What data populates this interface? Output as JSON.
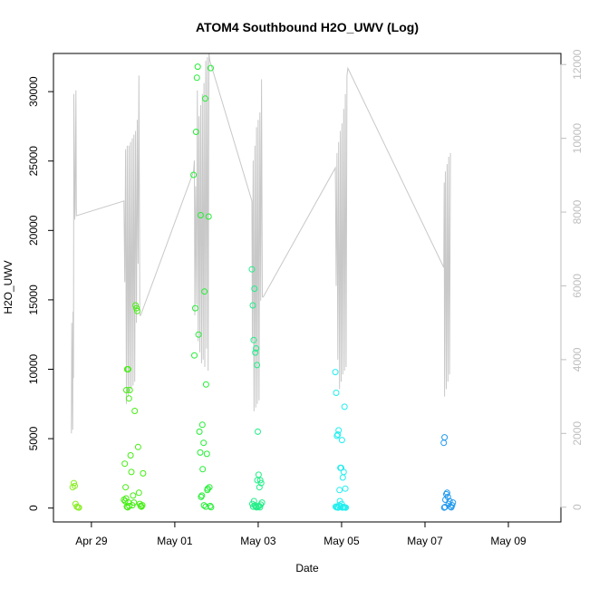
{
  "chart_data": {
    "type": "scatter",
    "title": "ATOM4 Southbound H2O_UWV (Log)",
    "xlabel": "Date",
    "ylabel": "H2O_UWV",
    "x_ticks": [
      "Apr 29",
      "May 01",
      "May 03",
      "May 05",
      "May 07",
      "May 09"
    ],
    "x_tick_days": [
      1,
      3,
      5,
      7,
      9,
      11
    ],
    "xlim_days": [
      0.09,
      12.26
    ],
    "ylim": [
      -1000,
      32750
    ],
    "y_ticks": [
      0,
      5000,
      10000,
      15000,
      20000,
      25000,
      30000
    ],
    "y2lim": [
      -400,
      12300
    ],
    "y2_ticks": [
      0,
      2000,
      4000,
      6000,
      8000,
      10000,
      12000
    ],
    "axis_color": "#000000",
    "secondary_color": "#c8c8c8",
    "secondary_tick_color": "#bebebe",
    "point_size": "open circles",
    "series": [
      {
        "color": "#88ee22",
        "points": [
          [
            0.55,
            1500
          ],
          [
            0.58,
            1800
          ],
          [
            0.6,
            1600
          ],
          [
            0.62,
            300
          ],
          [
            0.65,
            100
          ],
          [
            0.68,
            50
          ],
          [
            0.7,
            30
          ]
        ]
      },
      {
        "color": "#44ee11",
        "points": [
          [
            1.78,
            600
          ],
          [
            1.8,
            3200
          ],
          [
            1.82,
            1500
          ],
          [
            1.84,
            8500
          ],
          [
            1.86,
            10000
          ],
          [
            1.88,
            10000
          ],
          [
            1.9,
            7900
          ],
          [
            1.92,
            8500
          ],
          [
            1.94,
            3800
          ],
          [
            1.96,
            2600
          ],
          [
            1.98,
            200
          ],
          [
            2.0,
            900
          ],
          [
            2.02,
            400
          ],
          [
            2.04,
            7000
          ],
          [
            2.06,
            14600
          ],
          [
            2.08,
            14400
          ],
          [
            2.1,
            14200
          ],
          [
            2.12,
            4400
          ],
          [
            2.14,
            1100
          ],
          [
            2.16,
            300
          ],
          [
            2.18,
            150
          ],
          [
            2.2,
            100
          ],
          [
            2.22,
            200
          ],
          [
            2.24,
            2500
          ],
          [
            1.81,
            500
          ],
          [
            1.83,
            700
          ],
          [
            1.85,
            100
          ],
          [
            1.87,
            50
          ],
          [
            1.89,
            400
          ],
          [
            1.91,
            150
          ]
        ]
      },
      {
        "color": "#22ee33",
        "points": [
          [
            3.45,
            24000
          ],
          [
            3.47,
            11000
          ],
          [
            3.49,
            14400
          ],
          [
            3.51,
            27100
          ],
          [
            3.53,
            31000
          ],
          [
            3.55,
            31800
          ],
          [
            3.57,
            12500
          ],
          [
            3.59,
            5500
          ],
          [
            3.61,
            4000
          ],
          [
            3.63,
            800
          ],
          [
            3.65,
            900
          ],
          [
            3.67,
            2800
          ],
          [
            3.69,
            4700
          ],
          [
            3.71,
            15600
          ],
          [
            3.73,
            29500
          ],
          [
            3.75,
            8900
          ],
          [
            3.77,
            3900
          ],
          [
            3.79,
            1400
          ],
          [
            3.81,
            21000
          ],
          [
            3.83,
            1500
          ],
          [
            3.85,
            150
          ],
          [
            3.87,
            60
          ],
          [
            3.62,
            21100
          ],
          [
            3.66,
            6000
          ],
          [
            3.7,
            200
          ],
          [
            3.74,
            100
          ],
          [
            3.78,
            1300
          ],
          [
            3.86,
            31700
          ]
        ]
      },
      {
        "color": "#22ee88",
        "points": [
          [
            4.85,
            17200
          ],
          [
            4.87,
            14600
          ],
          [
            4.89,
            12100
          ],
          [
            4.91,
            15800
          ],
          [
            4.93,
            11200
          ],
          [
            4.95,
            11500
          ],
          [
            4.97,
            10300
          ],
          [
            4.99,
            5500
          ],
          [
            5.01,
            2400
          ],
          [
            5.03,
            1500
          ],
          [
            5.05,
            2000
          ],
          [
            5.07,
            1800
          ],
          [
            5.09,
            400
          ],
          [
            4.86,
            300
          ],
          [
            4.88,
            100
          ],
          [
            4.9,
            500
          ],
          [
            4.92,
            200
          ],
          [
            4.94,
            100
          ],
          [
            4.96,
            50
          ],
          [
            4.98,
            2000
          ],
          [
            5.0,
            100
          ],
          [
            5.02,
            150
          ],
          [
            5.04,
            50
          ],
          [
            5.06,
            250
          ]
        ]
      },
      {
        "color": "#22eeee",
        "points": [
          [
            6.85,
            9800
          ],
          [
            6.87,
            8300
          ],
          [
            6.89,
            5200
          ],
          [
            6.91,
            5300
          ],
          [
            6.93,
            5600
          ],
          [
            6.95,
            1300
          ],
          [
            6.97,
            2900
          ],
          [
            6.99,
            2900
          ],
          [
            7.01,
            4900
          ],
          [
            7.03,
            2200
          ],
          [
            7.05,
            2600
          ],
          [
            7.07,
            7300
          ],
          [
            7.09,
            1400
          ],
          [
            6.86,
            100
          ],
          [
            6.88,
            50
          ],
          [
            6.9,
            80
          ],
          [
            6.92,
            30
          ],
          [
            6.94,
            200
          ],
          [
            6.96,
            500
          ],
          [
            6.98,
            100
          ],
          [
            7.0,
            300
          ],
          [
            7.02,
            40
          ],
          [
            7.04,
            80
          ],
          [
            7.06,
            50
          ],
          [
            7.08,
            60
          ],
          [
            7.1,
            30
          ]
        ]
      },
      {
        "color": "#2299ee",
        "points": [
          [
            9.45,
            4700
          ],
          [
            9.47,
            5100
          ],
          [
            9.49,
            600
          ],
          [
            9.51,
            1000
          ],
          [
            9.53,
            1100
          ],
          [
            9.55,
            800
          ],
          [
            9.57,
            300
          ],
          [
            9.59,
            500
          ],
          [
            9.61,
            100
          ],
          [
            9.63,
            50
          ],
          [
            9.65,
            200
          ],
          [
            9.67,
            400
          ],
          [
            9.46,
            30
          ],
          [
            9.48,
            80
          ]
        ]
      }
    ],
    "secondary_line": [
      [
        0.52,
        2000
      ],
      [
        0.53,
        5000
      ],
      [
        0.55,
        2100
      ],
      [
        0.56,
        5300
      ],
      [
        0.57,
        3500
      ],
      [
        0.58,
        11200
      ],
      [
        0.6,
        7800
      ],
      [
        0.61,
        8100
      ],
      [
        0.63,
        11300
      ],
      [
        0.64,
        7900
      ],
      [
        1.78,
        8300
      ],
      [
        1.8,
        6100
      ],
      [
        1.82,
        9700
      ],
      [
        1.84,
        2800
      ],
      [
        1.86,
        9800
      ],
      [
        1.88,
        3000
      ],
      [
        1.9,
        9800
      ],
      [
        1.92,
        3100
      ],
      [
        1.94,
        9900
      ],
      [
        1.96,
        3200
      ],
      [
        1.98,
        10000
      ],
      [
        2.0,
        3300
      ],
      [
        2.02,
        10100
      ],
      [
        2.04,
        3400
      ],
      [
        2.06,
        10200
      ],
      [
        2.08,
        5000
      ],
      [
        2.1,
        10500
      ],
      [
        2.12,
        6600
      ],
      [
        2.14,
        11700
      ],
      [
        2.16,
        5200
      ],
      [
        2.18,
        5200
      ],
      [
        3.45,
        9100
      ],
      [
        3.47,
        9400
      ],
      [
        3.48,
        5200
      ],
      [
        3.5,
        8700
      ],
      [
        3.52,
        5500
      ],
      [
        3.54,
        11300
      ],
      [
        3.56,
        4500
      ],
      [
        3.58,
        10600
      ],
      [
        3.6,
        4200
      ],
      [
        3.62,
        10900
      ],
      [
        3.64,
        3900
      ],
      [
        3.66,
        11200
      ],
      [
        3.68,
        4000
      ],
      [
        3.7,
        11500
      ],
      [
        3.72,
        3800
      ],
      [
        3.74,
        12100
      ],
      [
        3.76,
        4300
      ],
      [
        3.78,
        12200
      ],
      [
        3.8,
        3700
      ],
      [
        3.82,
        12300
      ],
      [
        3.84,
        12100
      ],
      [
        4.85,
        8300
      ],
      [
        4.86,
        4500
      ],
      [
        4.88,
        9400
      ],
      [
        4.9,
        2600
      ],
      [
        4.92,
        9800
      ],
      [
        4.94,
        2700
      ],
      [
        4.96,
        10300
      ],
      [
        4.98,
        2800
      ],
      [
        5.0,
        10500
      ],
      [
        5.02,
        2900
      ],
      [
        5.04,
        10700
      ],
      [
        5.06,
        5600
      ],
      [
        5.08,
        11600
      ],
      [
        5.1,
        5700
      ],
      [
        5.12,
        5700
      ],
      [
        6.85,
        9200
      ],
      [
        6.87,
        6000
      ],
      [
        6.89,
        9600
      ],
      [
        6.91,
        4000
      ],
      [
        6.93,
        9900
      ],
      [
        6.95,
        3200
      ],
      [
        6.97,
        10200
      ],
      [
        6.99,
        3400
      ],
      [
        7.01,
        10400
      ],
      [
        7.03,
        3600
      ],
      [
        7.05,
        10800
      ],
      [
        7.07,
        3700
      ],
      [
        7.09,
        11200
      ],
      [
        7.11,
        3800
      ],
      [
        7.13,
        11700
      ],
      [
        7.15,
        11900
      ],
      [
        9.45,
        6500
      ],
      [
        9.46,
        8800
      ],
      [
        9.47,
        3000
      ],
      [
        9.49,
        9100
      ],
      [
        9.51,
        3200
      ],
      [
        9.53,
        9300
      ],
      [
        9.55,
        3400
      ],
      [
        9.57,
        9500
      ],
      [
        9.59,
        3600
      ],
      [
        9.61,
        9600
      ]
    ]
  }
}
